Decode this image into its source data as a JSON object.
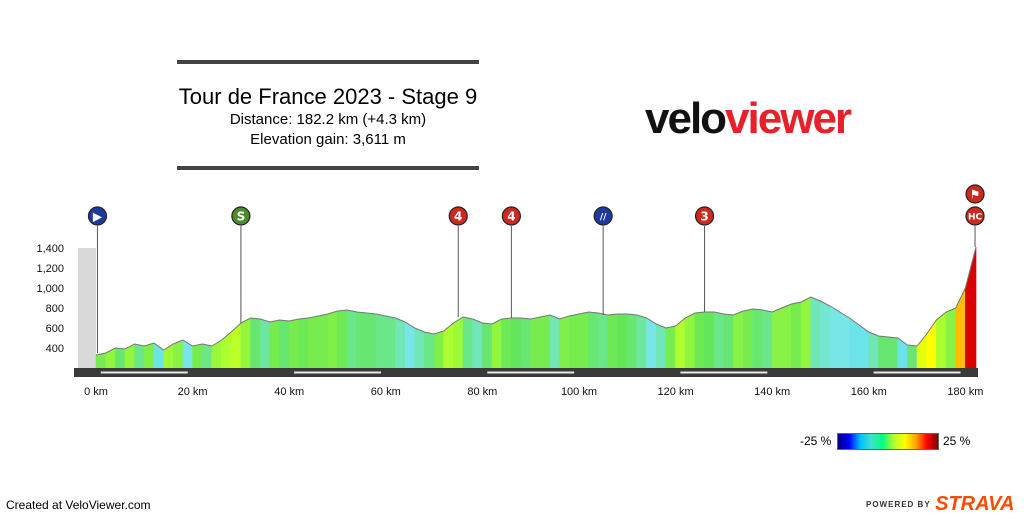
{
  "header": {
    "title": "Tour de France 2023 - Stage 9",
    "distance": "Distance: 182.2 km (+4.3 km)",
    "elevation": "Elevation gain: 3,611 m"
  },
  "logo": {
    "part1": "velo",
    "part2": "viewer"
  },
  "footer": {
    "credit": "Created at VeloViewer.com",
    "powered_by": "POWERED BY",
    "brand": "STRAVA"
  },
  "legend": {
    "min_label": "-25 %",
    "max_label": "25 %"
  },
  "chart_data": {
    "type": "area",
    "xlabel": "",
    "ylabel": "",
    "xlim": [
      0,
      182.2
    ],
    "ylim": [
      200,
      1400
    ],
    "xticks": [
      0,
      20,
      40,
      60,
      80,
      100,
      120,
      140,
      160,
      180
    ],
    "xtick_labels": [
      "0 km",
      "20 km",
      "40 km",
      "60 km",
      "80 km",
      "100 km",
      "120 km",
      "140 km",
      "160 km",
      "180 km"
    ],
    "yticks": [
      400,
      600,
      800,
      1000,
      1200,
      1400
    ],
    "ytick_labels": [
      "400",
      "600",
      "800",
      "1,000",
      "1,200",
      "1,400"
    ],
    "color_scale": {
      "min": -25,
      "max": 25,
      "unit": "%"
    },
    "profile": {
      "x": [
        0,
        2,
        4,
        6,
        8,
        10,
        12,
        14,
        16,
        18,
        20,
        22,
        24,
        26,
        28,
        30,
        32,
        34,
        36,
        38,
        40,
        42,
        44,
        46,
        48,
        50,
        52,
        54,
        56,
        58,
        60,
        62,
        64,
        66,
        68,
        70,
        72,
        74,
        76,
        78,
        80,
        82,
        84,
        86,
        88,
        90,
        92,
        94,
        96,
        98,
        100,
        102,
        104,
        106,
        108,
        110,
        112,
        114,
        116,
        118,
        120,
        122,
        124,
        126,
        128,
        130,
        132,
        134,
        136,
        138,
        140,
        142,
        144,
        146,
        148,
        150,
        152,
        154,
        156,
        158,
        160,
        162,
        164,
        166,
        168,
        170,
        172,
        174,
        176,
        178,
        180,
        182.2
      ],
      "y": [
        330,
        350,
        400,
        390,
        440,
        420,
        450,
        380,
        440,
        480,
        420,
        440,
        420,
        480,
        560,
        650,
        700,
        690,
        660,
        680,
        670,
        690,
        700,
        720,
        740,
        770,
        780,
        760,
        750,
        740,
        720,
        700,
        660,
        600,
        560,
        540,
        570,
        650,
        710,
        690,
        650,
        640,
        690,
        700,
        700,
        690,
        710,
        730,
        690,
        720,
        740,
        760,
        750,
        730,
        740,
        740,
        730,
        700,
        640,
        600,
        620,
        700,
        750,
        760,
        760,
        740,
        730,
        770,
        790,
        780,
        760,
        800,
        840,
        860,
        910,
        870,
        820,
        760,
        700,
        630,
        560,
        520,
        510,
        500,
        430,
        420,
        540,
        680,
        760,
        800,
        1000,
        1410
      ]
    },
    "markers": [
      {
        "km": 0.3,
        "symbol": "▶",
        "color": "#1f3a9c"
      },
      {
        "km": 30,
        "symbol": "S",
        "color": "#4f8a2e"
      },
      {
        "km": 75,
        "symbol": "4",
        "color": "#cc2a1e"
      },
      {
        "km": 86,
        "symbol": "4",
        "color": "#cc2a1e"
      },
      {
        "km": 105,
        "symbol": "//",
        "color": "#1f3a9c"
      },
      {
        "km": 126,
        "symbol": "3",
        "color": "#cc2a1e"
      },
      {
        "km": 182,
        "symbol": "HC",
        "color": "#cc2a1e"
      },
      {
        "km": 182,
        "symbol": "⚑",
        "color": "#cc2a1e"
      }
    ]
  }
}
